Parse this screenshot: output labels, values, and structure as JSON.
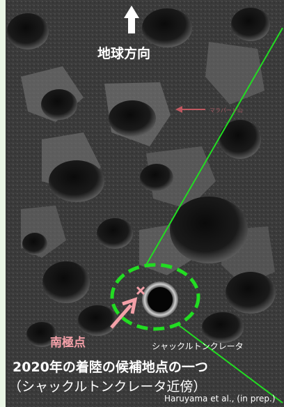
{
  "labels": {
    "earth_direction": "地球方向",
    "mountain": "マラパート山",
    "south_pole": "南極点",
    "crater": "シャックルトンクレータ",
    "caption_line1": "2020年の着陸の候補地点の一つ",
    "caption_line2": "（シャックルトンクレータ近傍）",
    "credit": "Haruyama et al., (in prep.)"
  },
  "colors": {
    "background": "#eaf6e6",
    "terrain": "#3c3c3c",
    "guide_line": "#22dd22",
    "landing_ellipse": "#22dd22",
    "pole_marker": "#f4a0a8",
    "arrow": "#ffffff",
    "mountain_arrow": "#c05860"
  },
  "icons": {
    "earth_arrow": "arrow-up-icon",
    "pole_pointer": "arrow-up-right-icon",
    "pole_marker": "cross-icon",
    "mountain_pointer": "arrow-left-icon"
  }
}
